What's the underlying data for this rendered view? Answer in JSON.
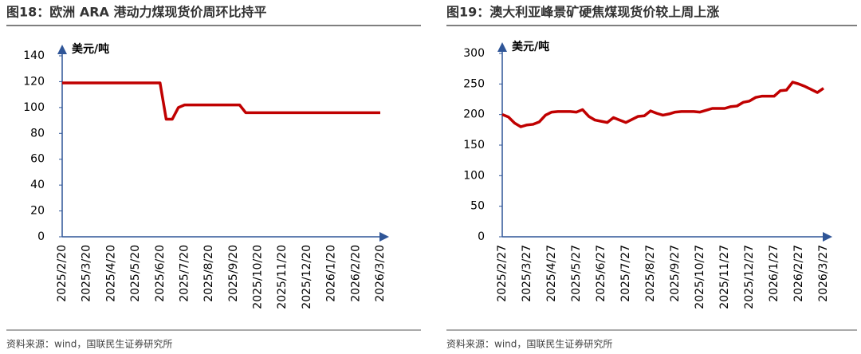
{
  "chart_data": [
    {
      "type": "line",
      "title": "图18：欧洲 ARA 港动力煤现货价周环比持平",
      "ylabel": "美元/吨",
      "source": "资料来源：wind，国联民生证券研究所",
      "color": "#c00000",
      "categories": [
        "2025/2/20",
        null,
        null,
        null,
        "2025/3/20",
        null,
        null,
        null,
        "2025/4/20",
        null,
        null,
        null,
        "2025/5/20",
        null,
        null,
        null,
        "2025/6/20",
        null,
        null,
        null,
        "2025/7/20",
        null,
        null,
        null,
        "2025/8/20",
        null,
        null,
        null,
        "2025/9/20",
        null,
        null,
        null,
        "2025/10/20",
        null,
        null,
        null,
        "2025/11/20",
        null,
        null,
        null,
        "2025/12/20",
        null,
        null,
        null,
        "2026/1/20",
        null,
        null,
        null,
        "2026/2/20",
        null,
        null,
        null,
        "2026/3/20"
      ],
      "values": [
        119,
        119,
        119,
        119,
        119,
        119,
        119,
        119,
        119,
        119,
        119,
        119,
        119,
        119,
        119,
        119,
        119,
        91,
        91,
        100,
        102,
        102,
        102,
        102,
        102,
        102,
        102,
        102,
        102,
        102,
        96,
        96,
        96,
        96,
        96,
        96,
        96,
        96,
        96,
        96,
        96,
        96,
        96,
        96,
        96,
        96,
        96,
        96,
        96,
        96,
        96,
        96,
        96
      ],
      "ylim": [
        0,
        140
      ],
      "yticks": [
        0,
        20,
        40,
        60,
        80,
        100,
        120,
        140
      ]
    },
    {
      "type": "line",
      "title": "图19：澳大利亚峰景矿硬焦煤现货价较上周上涨",
      "ylabel": "美元/吨",
      "source": "资料来源：wind，国联民生证券研究所",
      "color": "#c00000",
      "categories": [
        "2025/2/27",
        null,
        null,
        null,
        "2025/3/27",
        null,
        null,
        null,
        "2025/4/27",
        null,
        null,
        null,
        "2025/5/27",
        null,
        null,
        null,
        "2025/6/27",
        null,
        null,
        null,
        "2025/7/27",
        null,
        null,
        null,
        "2025/8/27",
        null,
        null,
        null,
        "2025/9/27",
        null,
        null,
        null,
        "2025/10/27",
        null,
        null,
        null,
        "2025/11/27",
        null,
        null,
        null,
        "2025/12/27",
        null,
        null,
        null,
        "2026/1/27",
        null,
        null,
        null,
        "2026/2/27",
        null,
        null,
        null,
        "2026/3/27"
      ],
      "values": [
        200,
        196,
        186,
        180,
        183,
        184,
        188,
        199,
        204,
        205,
        205,
        205,
        204,
        208,
        197,
        191,
        189,
        187,
        195,
        191,
        187,
        192,
        197,
        198,
        206,
        202,
        199,
        201,
        204,
        205,
        205,
        205,
        204,
        207,
        210,
        210,
        210,
        213,
        214,
        220,
        222,
        228,
        230,
        230,
        230,
        239,
        240,
        253,
        250,
        246,
        241,
        236,
        243
      ],
      "ylim": [
        0,
        300
      ],
      "yticks": [
        0,
        50,
        100,
        150,
        200,
        250,
        300
      ]
    }
  ]
}
